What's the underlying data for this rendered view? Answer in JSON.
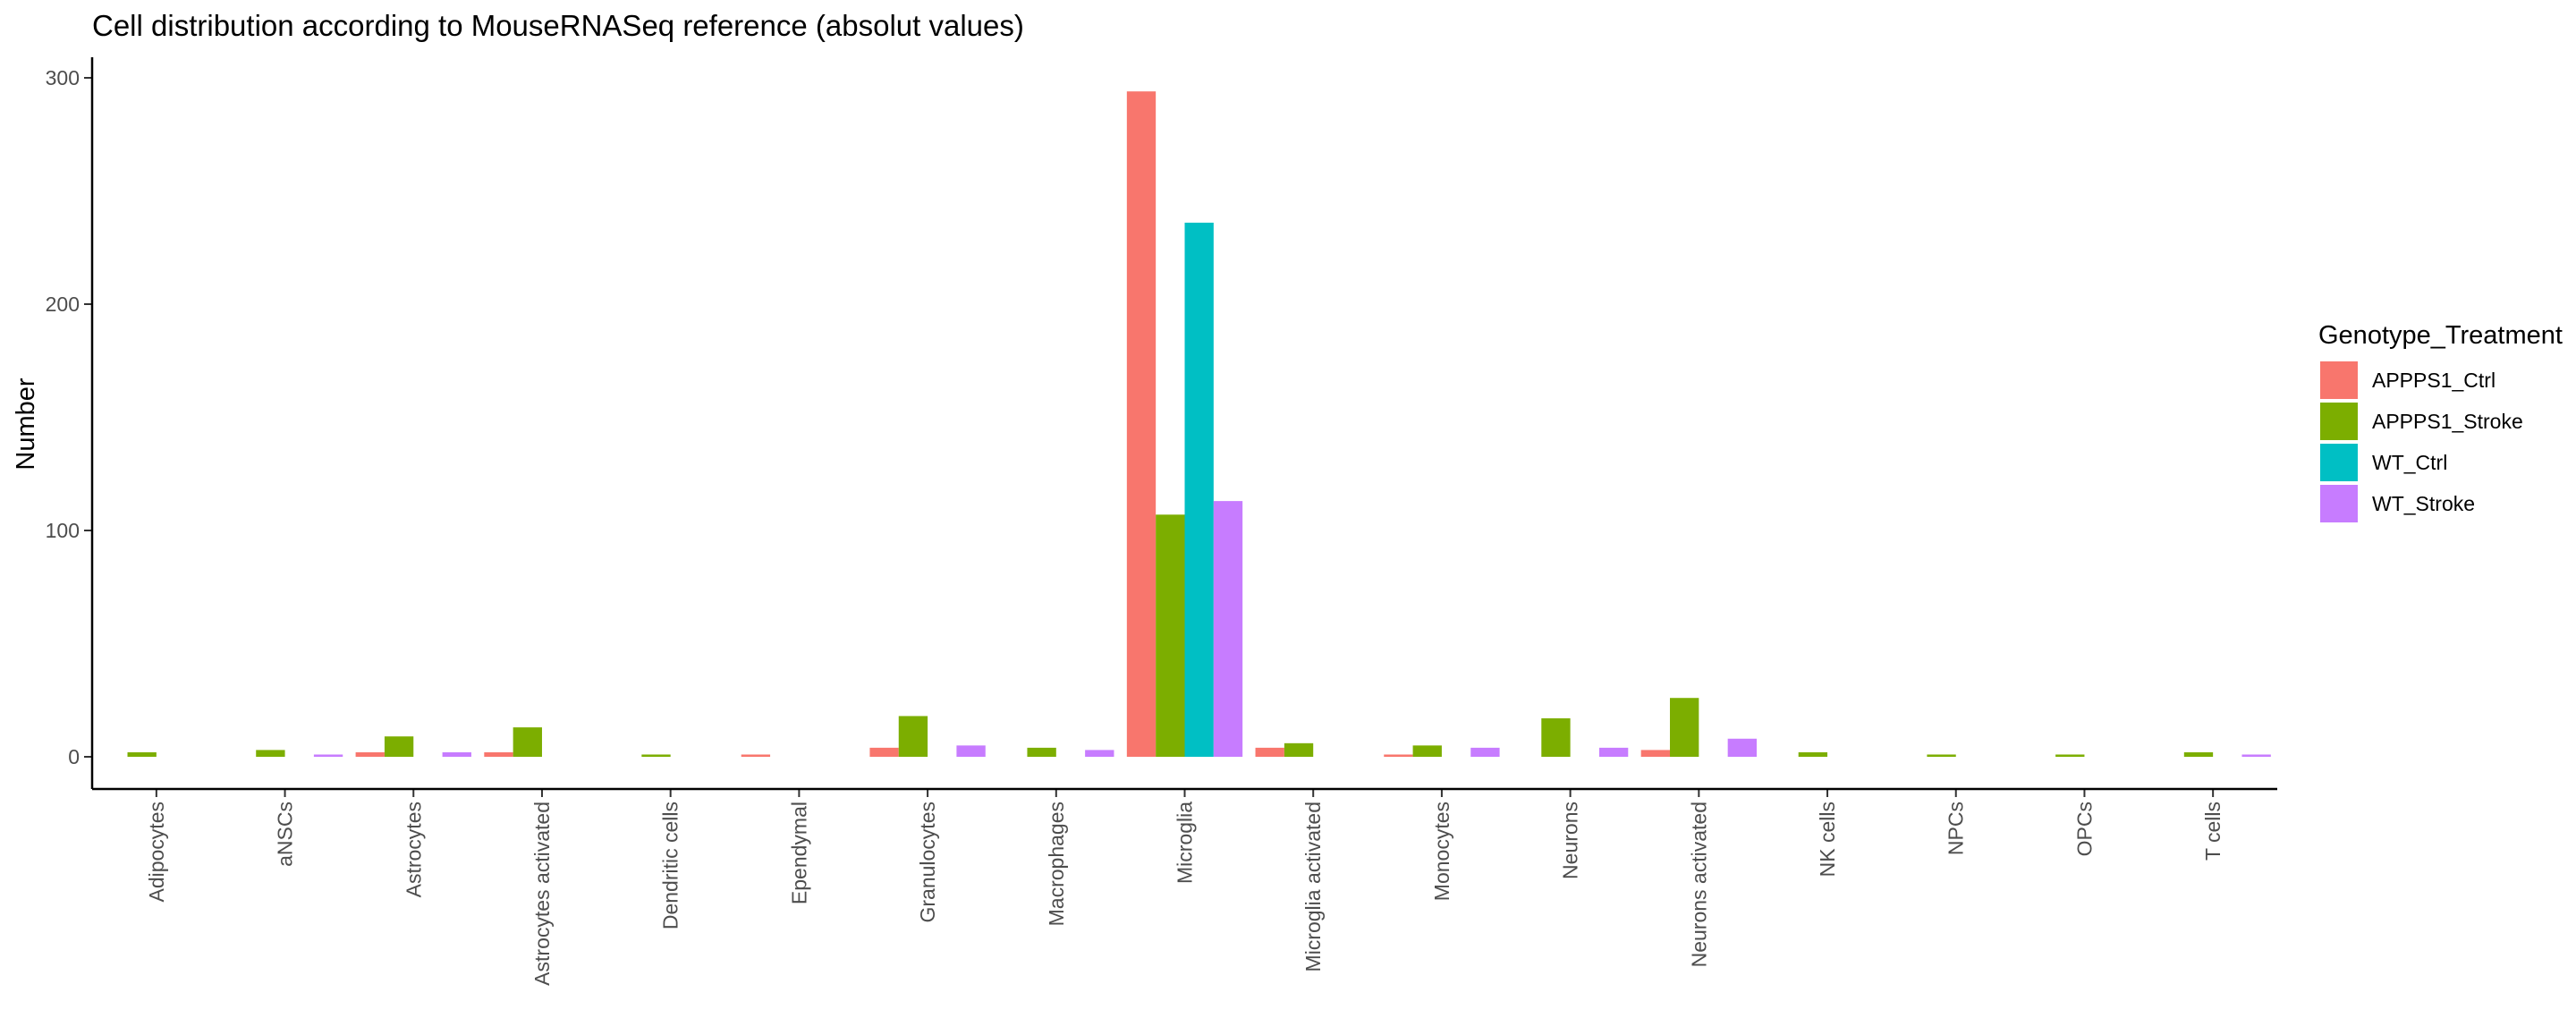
{
  "chart_data": {
    "type": "bar",
    "title": "Cell distribution according to MouseRNASeq reference (absolut values)",
    "xlabel": "",
    "ylabel": "Number",
    "ylim": [
      -14,
      310
    ],
    "yticks": [
      0,
      100,
      200,
      300
    ],
    "grid": false,
    "legend": {
      "title": "Genotype_Treatment",
      "position": "right"
    },
    "categories": [
      "Adipocytes",
      "aNSCs",
      "Astrocytes",
      "Astrocytes activated",
      "Dendritic cells",
      "Ependymal",
      "Granulocytes",
      "Macrophages",
      "Microglia",
      "Microglia activated",
      "Monocytes",
      "Neurons",
      "Neurons activated",
      "NK cells",
      "NPCs",
      "OPCs",
      "T cells"
    ],
    "series": [
      {
        "name": "APPPS1_Ctrl",
        "color": "#F8766D",
        "values": [
          0,
          0,
          2,
          2,
          0,
          1,
          4,
          0,
          294,
          4,
          1,
          0,
          3,
          0,
          0,
          0,
          0
        ]
      },
      {
        "name": "APPPS1_Stroke",
        "color": "#7CAE00",
        "values": [
          2,
          3,
          9,
          13,
          1,
          0,
          18,
          4,
          107,
          6,
          5,
          17,
          26,
          2,
          1,
          1,
          2
        ]
      },
      {
        "name": "WT_Ctrl",
        "color": "#00BFC4",
        "values": [
          0,
          0,
          0,
          0,
          0,
          0,
          0,
          0,
          236,
          0,
          0,
          0,
          0,
          0,
          0,
          0,
          0
        ]
      },
      {
        "name": "WT_Stroke",
        "color": "#C77CFF",
        "values": [
          0,
          1,
          2,
          0,
          0,
          0,
          5,
          3,
          113,
          0,
          4,
          4,
          8,
          0,
          0,
          0,
          1
        ]
      }
    ]
  }
}
